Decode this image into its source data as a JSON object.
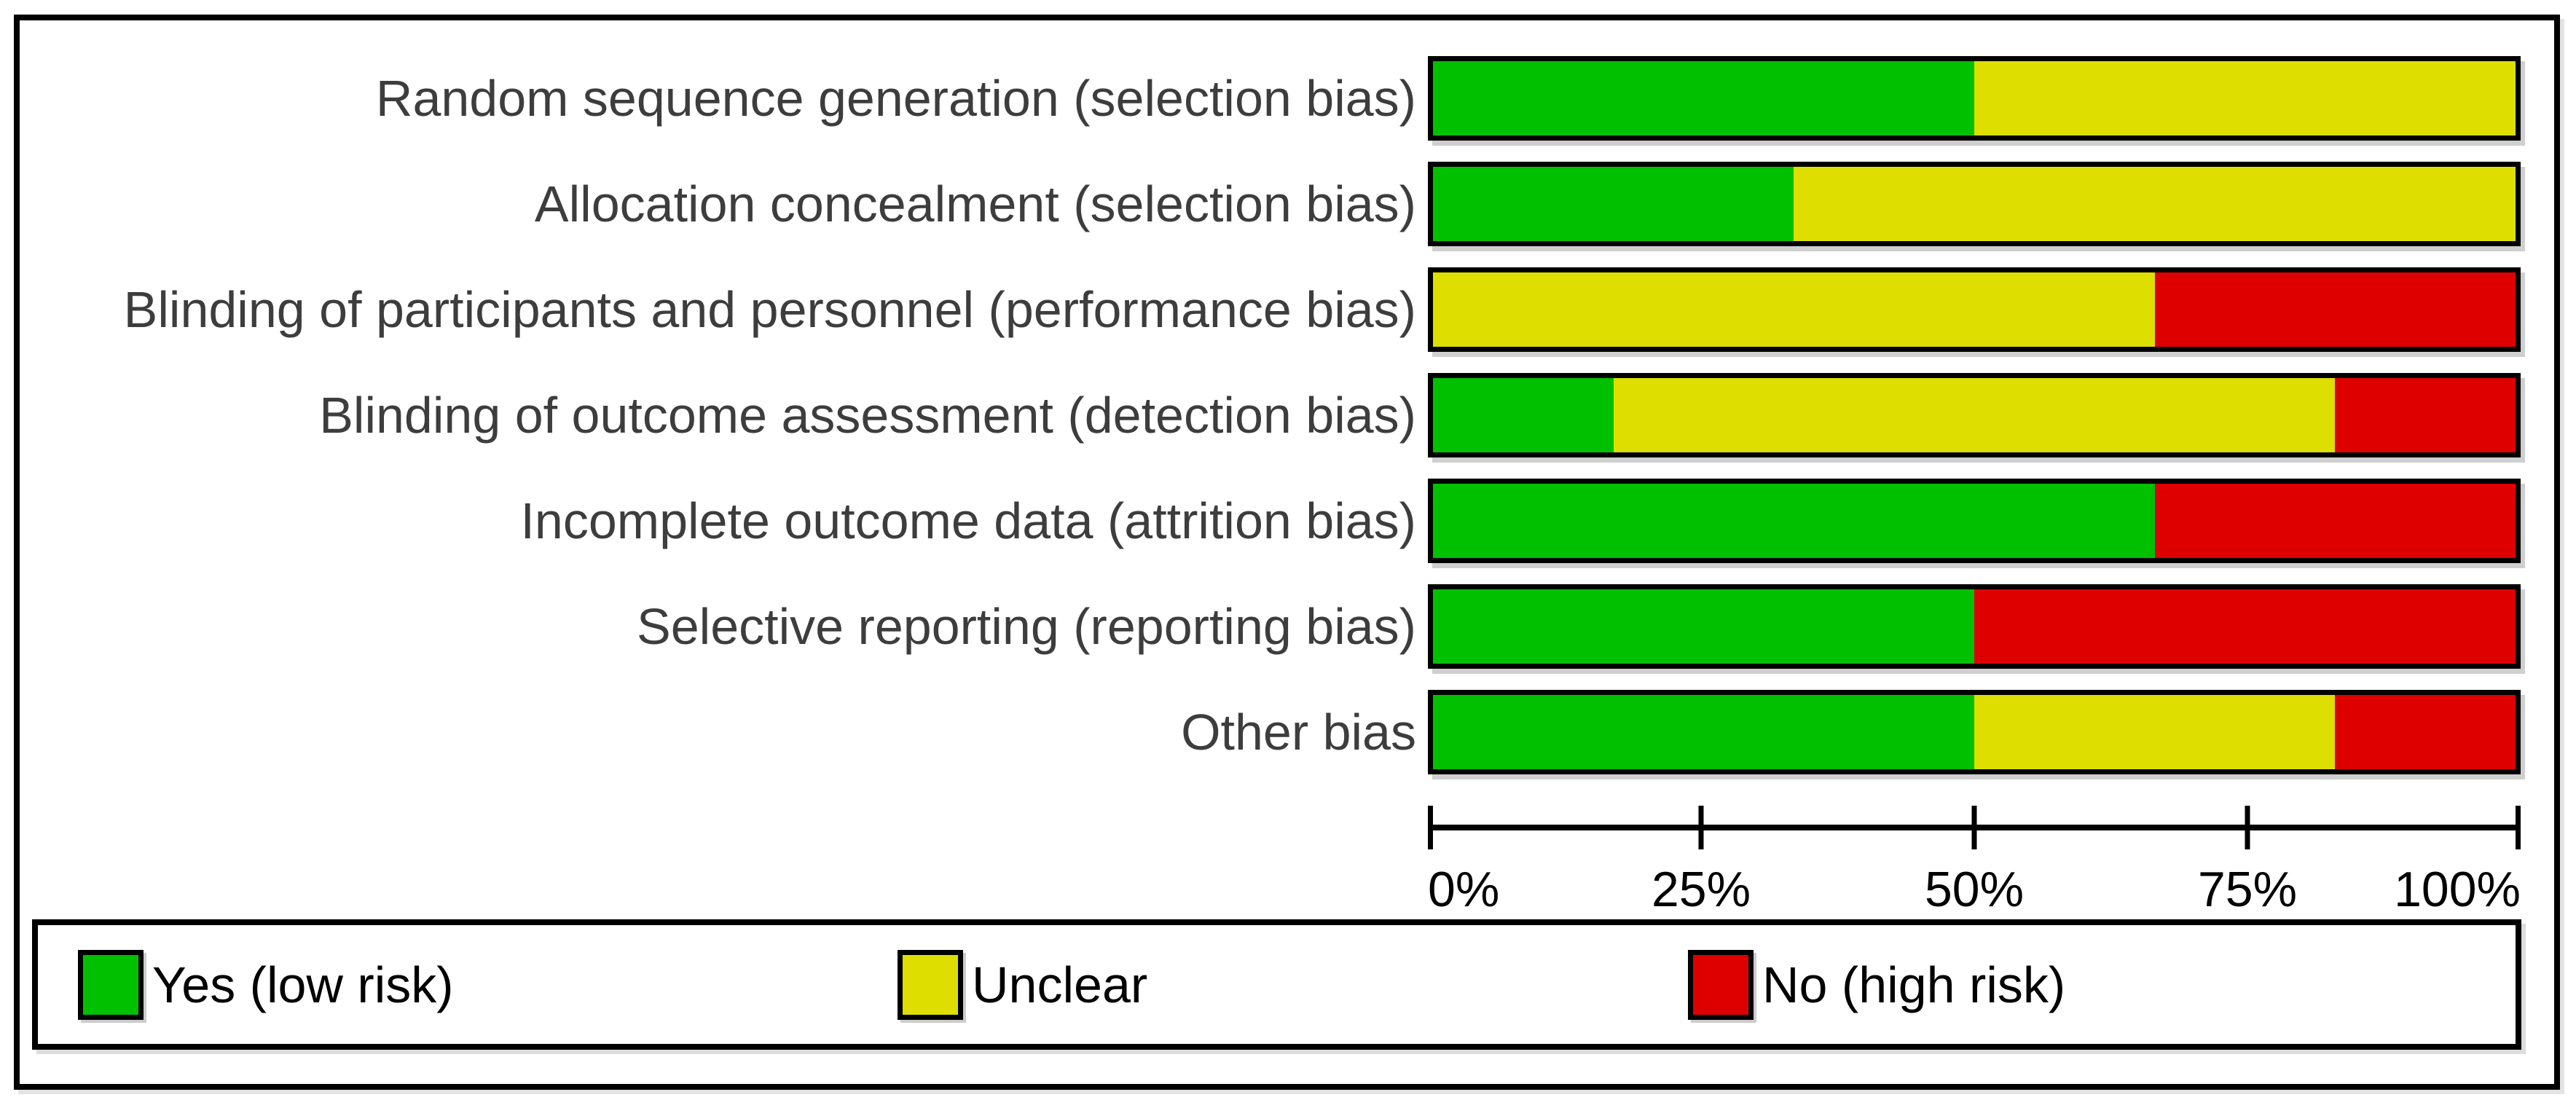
{
  "figure": {
    "kind": "risk-of-bias-graph"
  },
  "chart_data": {
    "type": "bar",
    "orientation": "horizontal",
    "stacked": true,
    "title": "",
    "xlabel": "",
    "ylabel": "",
    "x_axis": {
      "range_percent": [
        0,
        100
      ],
      "tick_labels": [
        "0%",
        "25%",
        "50%",
        "75%",
        "100%"
      ],
      "tick_values": [
        0,
        25,
        50,
        75,
        100
      ]
    },
    "grid": false,
    "legend_position": "bottom",
    "categories": [
      "Random sequence generation (selection bias)",
      "Allocation concealment (selection bias)",
      "Blinding of participants and personnel (performance bias)",
      "Blinding of outcome assessment (detection bias)",
      "Incomplete outcome data (attrition bias)",
      "Selective reporting (reporting bias)",
      "Other bias"
    ],
    "series": [
      {
        "key": "low-risk",
        "name": "Yes (low risk)",
        "color": "#00C000",
        "values_percent": [
          50,
          33.3,
          0,
          16.7,
          66.7,
          50,
          50
        ]
      },
      {
        "key": "unclear",
        "name": "Unclear",
        "color": "#DEDE00",
        "values_percent": [
          50,
          66.7,
          66.7,
          66.7,
          0,
          0,
          33.3
        ]
      },
      {
        "key": "high-risk",
        "name": "No (high risk)",
        "color": "#DE0000",
        "values_percent": [
          0,
          0,
          33.3,
          16.7,
          33.3,
          50,
          16.7
        ]
      }
    ]
  },
  "legend": {
    "items": [
      {
        "key": "low-risk",
        "label": "Yes (low risk)",
        "color": "#00C000"
      },
      {
        "key": "unclear",
        "label": "Unclear",
        "color": "#DEDE00"
      },
      {
        "key": "high-risk",
        "label": "No (high risk)",
        "color": "#DE0000"
      }
    ]
  }
}
